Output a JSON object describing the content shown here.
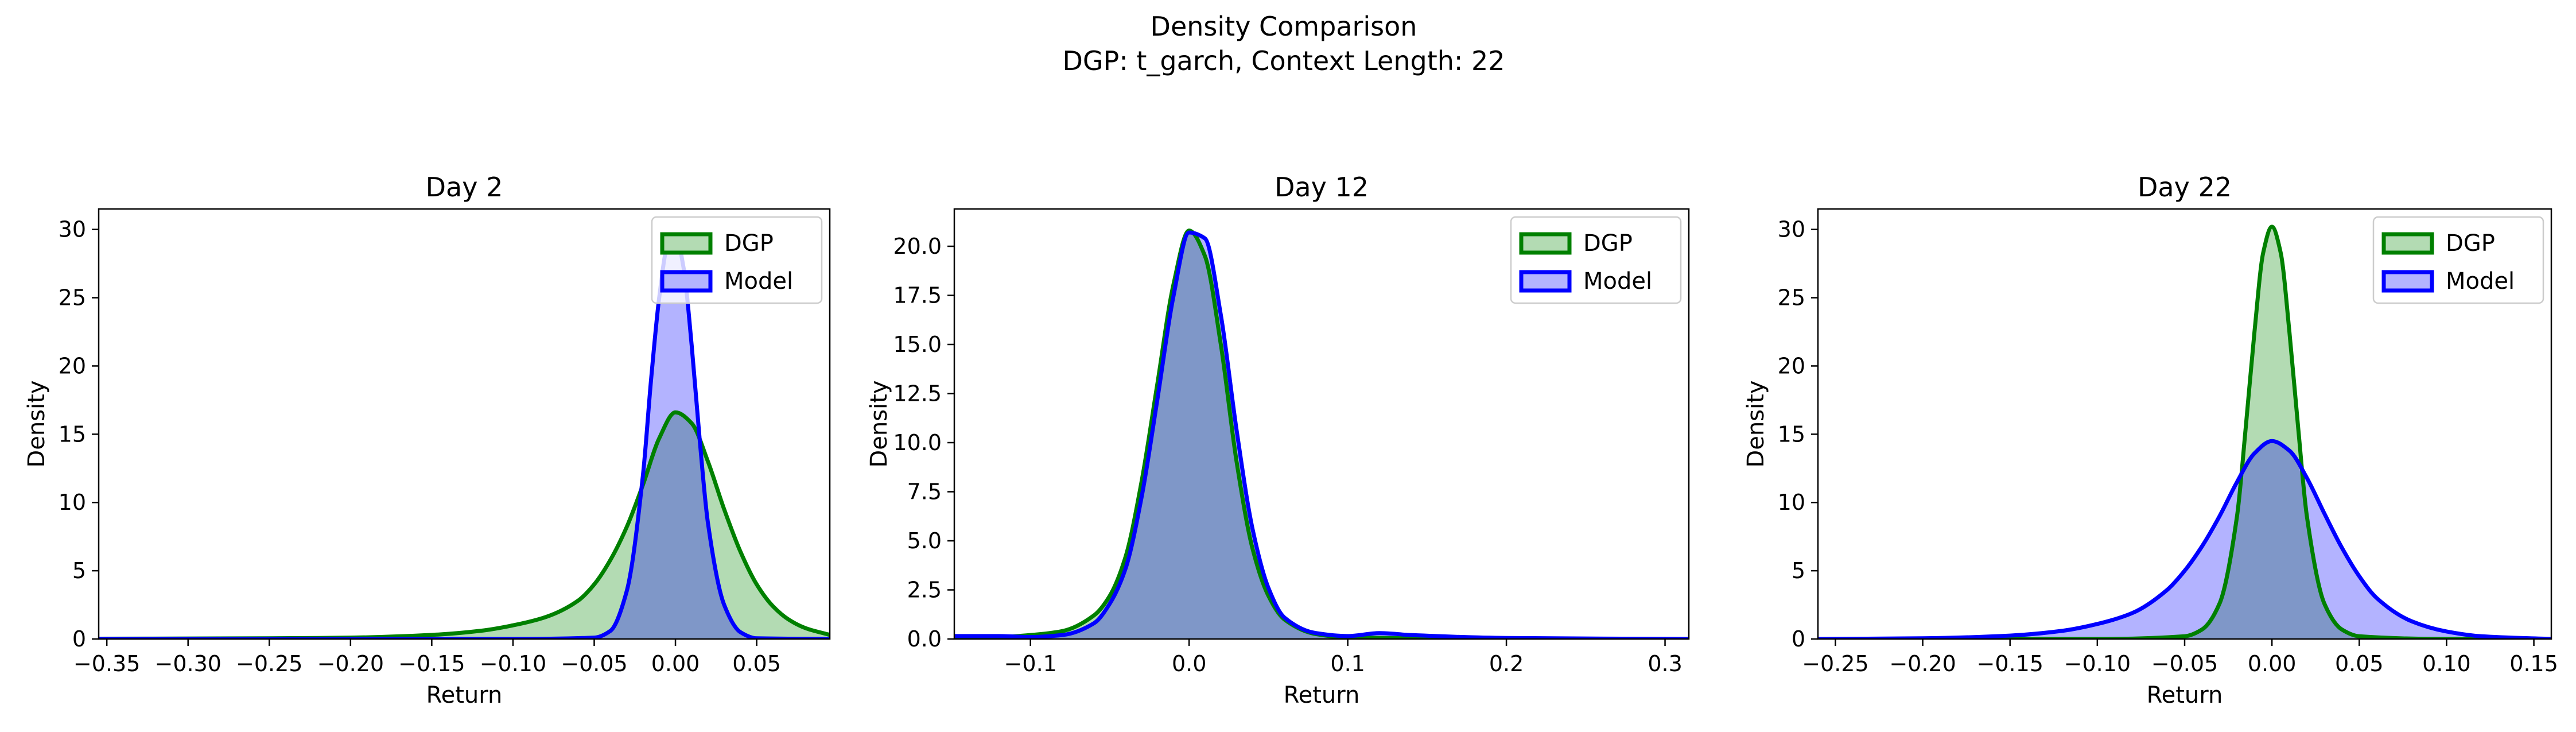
{
  "figure": {
    "suptitle_line1": "Density Comparison",
    "suptitle_line2": "DGP: t_garch, Context Length: 22"
  },
  "colors": {
    "dgp_line": "#008000",
    "dgp_fill": "#b3dbb3",
    "model_line": "#0000ff",
    "model_fill": "#b3b3ff",
    "overlap_fill": "#7f97c8"
  },
  "chart_data": [
    {
      "type": "area",
      "title": "Day 2",
      "xlabel": "Return",
      "ylabel": "Density",
      "xlim": [
        -0.355,
        0.095
      ],
      "ylim": [
        0,
        31.5
      ],
      "xticks": [
        -0.35,
        -0.3,
        -0.25,
        -0.2,
        -0.15,
        -0.1,
        -0.05,
        0.0,
        0.05
      ],
      "xtick_labels": [
        "−0.35",
        "−0.30",
        "−0.25",
        "−0.20",
        "−0.15",
        "−0.10",
        "−0.05",
        "0.00",
        "0.05"
      ],
      "yticks": [
        0,
        5,
        10,
        15,
        20,
        25,
        30
      ],
      "ytick_labels": [
        "0",
        "5",
        "10",
        "15",
        "20",
        "25",
        "30"
      ],
      "legend": {
        "position": "top-right",
        "entries": [
          "DGP",
          "Model"
        ]
      },
      "series": [
        {
          "name": "DGP",
          "x": [
            -0.355,
            -0.25,
            -0.2,
            -0.15,
            -0.12,
            -0.1,
            -0.08,
            -0.06,
            -0.05,
            -0.04,
            -0.03,
            -0.02,
            -0.01,
            0.0,
            0.01,
            0.02,
            0.03,
            0.04,
            0.05,
            0.06,
            0.07,
            0.08,
            0.095
          ],
          "y": [
            0.02,
            0.05,
            0.1,
            0.3,
            0.6,
            1.0,
            1.6,
            2.8,
            4.0,
            5.8,
            8.2,
            11.3,
            14.7,
            16.6,
            15.8,
            13.0,
            9.5,
            6.4,
            4.0,
            2.4,
            1.4,
            0.8,
            0.3
          ]
        },
        {
          "name": "Model",
          "x": [
            -0.355,
            -0.1,
            -0.05,
            -0.04,
            -0.03,
            -0.02,
            -0.015,
            -0.01,
            -0.005,
            0.0,
            0.005,
            0.01,
            0.015,
            0.02,
            0.03,
            0.04,
            0.05,
            0.095
          ],
          "y": [
            0.0,
            0.0,
            0.1,
            0.6,
            3.5,
            12.0,
            19.0,
            25.0,
            28.8,
            29.6,
            27.2,
            21.5,
            14.5,
            8.5,
            2.5,
            0.5,
            0.05,
            0.0
          ]
        }
      ]
    },
    {
      "type": "area",
      "title": "Day 12",
      "xlabel": "Return",
      "ylabel": "Density",
      "xlim": [
        -0.148,
        0.315
      ],
      "ylim": [
        0,
        21.9
      ],
      "xticks": [
        -0.1,
        0.0,
        0.1,
        0.2,
        0.3
      ],
      "xtick_labels": [
        "−0.1",
        "0.0",
        "0.1",
        "0.2",
        "0.3"
      ],
      "yticks": [
        0,
        2.5,
        5.0,
        7.5,
        10.0,
        12.5,
        15.0,
        17.5,
        20.0
      ],
      "ytick_labels": [
        "0.0",
        "2.5",
        "5.0",
        "7.5",
        "10.0",
        "12.5",
        "15.0",
        "17.5",
        "20.0"
      ],
      "legend": {
        "position": "top-right",
        "entries": [
          "DGP",
          "Model"
        ]
      },
      "series": [
        {
          "name": "DGP",
          "x": [
            -0.148,
            -0.12,
            -0.1,
            -0.08,
            -0.06,
            -0.05,
            -0.04,
            -0.03,
            -0.02,
            -0.01,
            0.0,
            0.01,
            0.02,
            0.03,
            0.04,
            0.05,
            0.06,
            0.08,
            0.1,
            0.2,
            0.315
          ],
          "y": [
            0.05,
            0.1,
            0.2,
            0.4,
            1.2,
            2.2,
            4.2,
            8.0,
            13.0,
            18.0,
            20.8,
            19.5,
            15.0,
            9.0,
            4.6,
            2.2,
            1.0,
            0.25,
            0.08,
            0.01,
            0.0
          ]
        },
        {
          "name": "Model",
          "x": [
            -0.148,
            -0.12,
            -0.1,
            -0.08,
            -0.06,
            -0.05,
            -0.04,
            -0.03,
            -0.02,
            -0.01,
            0.0,
            0.01,
            0.02,
            0.03,
            0.04,
            0.05,
            0.06,
            0.08,
            0.1,
            0.12,
            0.14,
            0.2,
            0.315
          ],
          "y": [
            0.15,
            0.15,
            0.1,
            0.2,
            0.8,
            1.8,
            3.6,
            7.2,
            12.2,
            17.4,
            20.7,
            20.4,
            16.5,
            10.6,
            5.6,
            2.6,
            1.1,
            0.3,
            0.15,
            0.3,
            0.2,
            0.05,
            0.0
          ]
        }
      ]
    },
    {
      "type": "area",
      "title": "Day 22",
      "xlabel": "Return",
      "ylabel": "Density",
      "xlim": [
        -0.26,
        0.16
      ],
      "ylim": [
        0,
        31.5
      ],
      "xticks": [
        -0.25,
        -0.2,
        -0.15,
        -0.1,
        -0.05,
        0.0,
        0.05,
        0.1,
        0.15
      ],
      "xtick_labels": [
        "−0.25",
        "−0.20",
        "−0.15",
        "−0.10",
        "−0.05",
        "0.00",
        "0.05",
        "0.10",
        "0.15"
      ],
      "yticks": [
        0,
        5,
        10,
        15,
        20,
        25,
        30
      ],
      "ytick_labels": [
        "0",
        "5",
        "10",
        "15",
        "20",
        "25",
        "30"
      ],
      "legend": {
        "position": "top-right",
        "entries": [
          "DGP",
          "Model"
        ]
      },
      "series": [
        {
          "name": "DGP",
          "x": [
            -0.26,
            -0.1,
            -0.05,
            -0.04,
            -0.03,
            -0.02,
            -0.015,
            -0.01,
            -0.005,
            0.0,
            0.005,
            0.01,
            0.015,
            0.02,
            0.03,
            0.04,
            0.05,
            0.1,
            0.16
          ],
          "y": [
            0.0,
            0.0,
            0.2,
            0.7,
            2.6,
            9.0,
            15.5,
            22.5,
            28.3,
            30.2,
            28.3,
            22.5,
            15.5,
            9.0,
            2.6,
            0.7,
            0.2,
            0.0,
            0.0
          ]
        },
        {
          "name": "Model",
          "x": [
            -0.26,
            -0.2,
            -0.15,
            -0.12,
            -0.1,
            -0.08,
            -0.06,
            -0.05,
            -0.04,
            -0.03,
            -0.02,
            -0.01,
            0.0,
            0.01,
            0.02,
            0.03,
            0.04,
            0.05,
            0.06,
            0.08,
            0.1,
            0.12,
            0.16
          ],
          "y": [
            0.0,
            0.05,
            0.25,
            0.6,
            1.1,
            1.9,
            3.6,
            5.0,
            6.8,
            9.0,
            11.5,
            13.6,
            14.5,
            13.8,
            11.8,
            9.2,
            6.7,
            4.6,
            3.0,
            1.3,
            0.55,
            0.2,
            0.0
          ]
        }
      ]
    }
  ]
}
